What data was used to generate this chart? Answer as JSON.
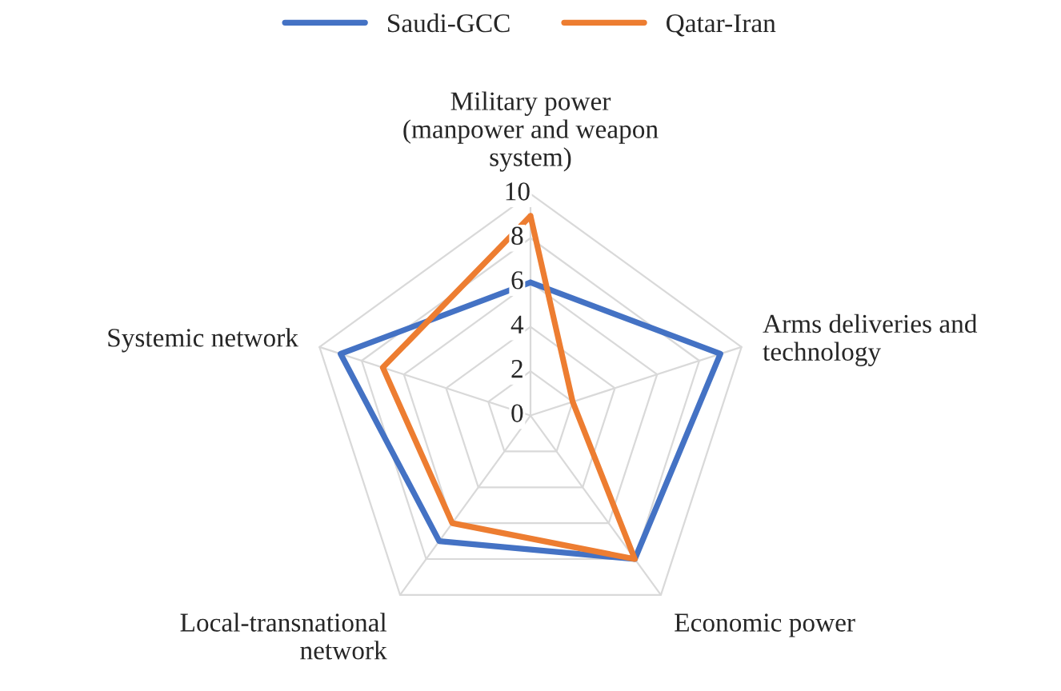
{
  "chart_data": {
    "type": "radar",
    "categories": [
      "Military power\n(manpower and weapon\nsystem)",
      "Arms deliveries and\ntechnology",
      "Economic power",
      "Local-transnational\nnetwork",
      "Systemic network"
    ],
    "series": [
      {
        "name": "Saudi-GCC",
        "color": "#4472c4",
        "values": [
          6,
          9,
          8,
          7,
          9
        ]
      },
      {
        "name": "Qatar-Iran",
        "color": "#ed7d31",
        "values": [
          9,
          2,
          8,
          6,
          7
        ]
      }
    ],
    "ylim": [
      0,
      10
    ],
    "yticks": [
      0,
      2,
      4,
      6,
      8,
      10
    ],
    "grid": true,
    "legend": "top"
  }
}
